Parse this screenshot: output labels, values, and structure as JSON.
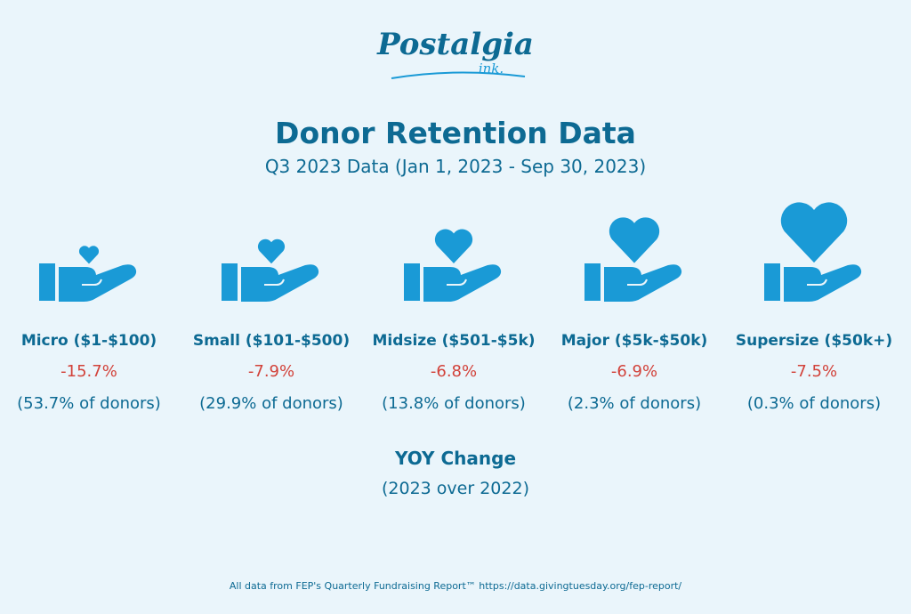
{
  "logo": {
    "name": "Postalgia",
    "sub": "ink."
  },
  "title": "Donor Retention Data",
  "subtitle": "Q3 2023 Data (Jan 1, 2023 - Sep 30, 2023)",
  "segments": [
    {
      "label": "Micro ($1-$100)",
      "change": "-15.7%",
      "share": "(53.7% of donors)"
    },
    {
      "label": "Small ($101-$500)",
      "change": "-7.9%",
      "share": "(29.9% of donors)"
    },
    {
      "label": "Midsize ($501-$5k)",
      "change": "-6.8%",
      "share": "(13.8% of donors)"
    },
    {
      "label": "Major ($5k-$50k)",
      "change": "-6.9%",
      "share": "(2.3% of donors)"
    },
    {
      "label": "Supersize ($50k+)",
      "change": "-7.5%",
      "share": "(0.3% of donors)"
    }
  ],
  "caption": {
    "title": "YOY Change",
    "subtitle": "(2023 over 2022)"
  },
  "footer": "All data from FEP's Quarterly Fundraising Report™ https://data.givingtuesday.org/fep-report/"
}
